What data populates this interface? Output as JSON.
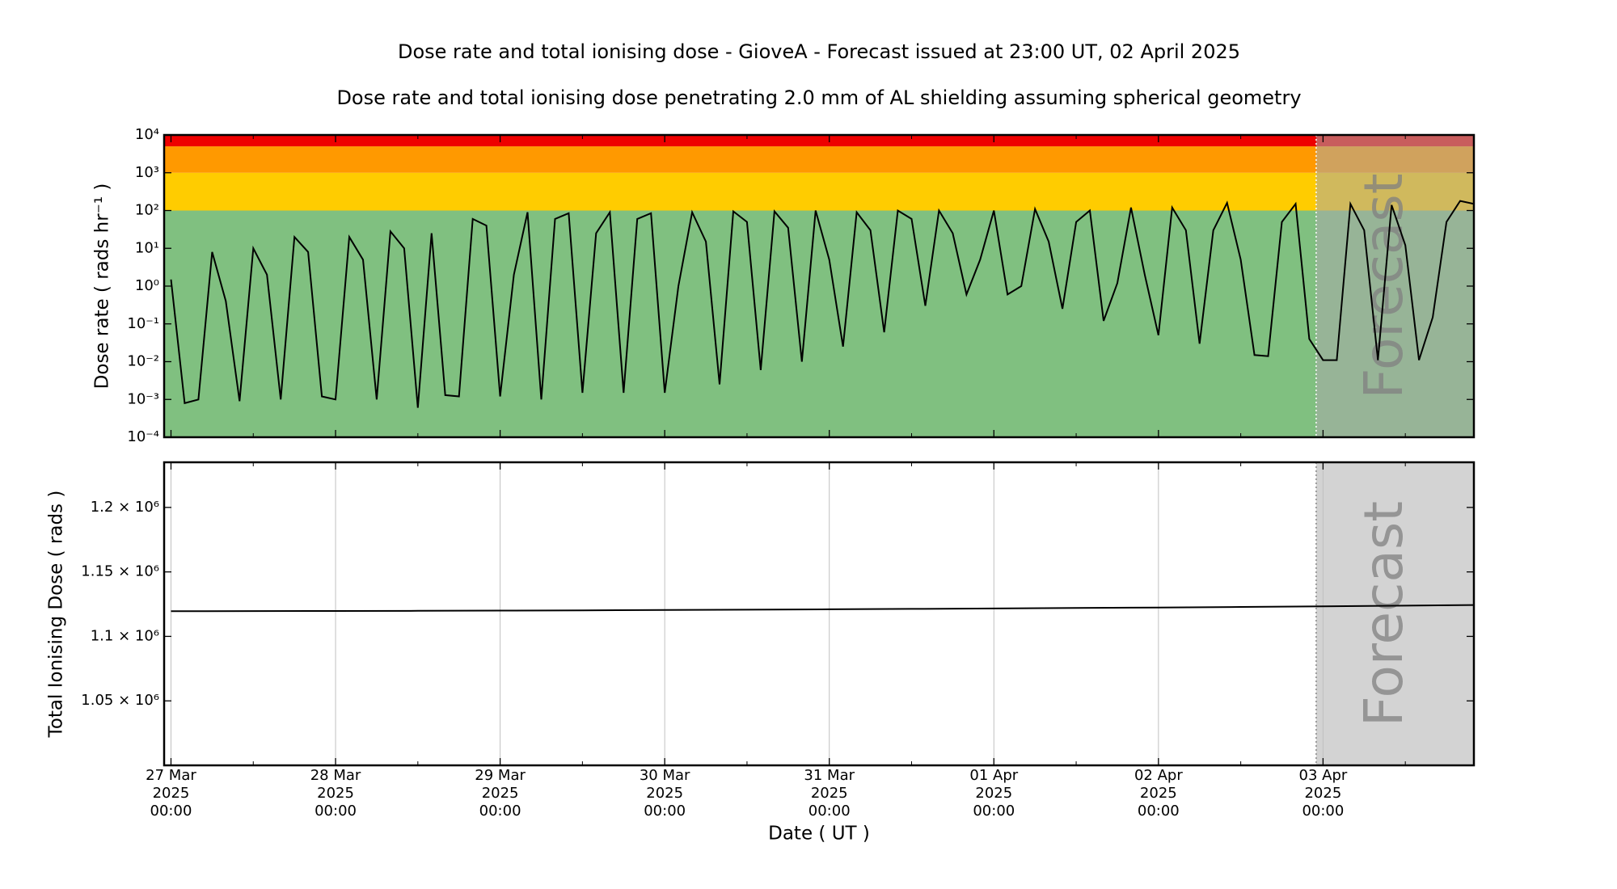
{
  "chart_data": [
    {
      "type": "line",
      "title": "Dose rate and total ionising dose - GioveA - Forecast issued at 23:00 UT, 02 April 2025",
      "subtitle": "Dose rate and total ionising dose penetrating 2.0 mm of AL shielding assuming spherical geometry",
      "ylabel": "Dose rate ( rads hr⁻¹ )",
      "log_y": true,
      "color": "#000000",
      "x": [
        "2025-03-27 00:00",
        "2025-03-27 02:00",
        "2025-03-27 04:00",
        "2025-03-27 06:00",
        "2025-03-27 08:00",
        "2025-03-27 10:00",
        "2025-03-27 12:00",
        "2025-03-27 14:00",
        "2025-03-27 16:00",
        "2025-03-27 18:00",
        "2025-03-27 20:00",
        "2025-03-27 22:00",
        "2025-03-28 00:00",
        "2025-03-28 02:00",
        "2025-03-28 04:00",
        "2025-03-28 06:00",
        "2025-03-28 08:00",
        "2025-03-28 10:00",
        "2025-03-28 12:00",
        "2025-03-28 14:00",
        "2025-03-28 16:00",
        "2025-03-28 18:00",
        "2025-03-28 20:00",
        "2025-03-28 22:00",
        "2025-03-29 00:00",
        "2025-03-29 02:00",
        "2025-03-29 04:00",
        "2025-03-29 06:00",
        "2025-03-29 08:00",
        "2025-03-29 10:00",
        "2025-03-29 12:00",
        "2025-03-29 14:00",
        "2025-03-29 16:00",
        "2025-03-29 18:00",
        "2025-03-29 20:00",
        "2025-03-29 22:00",
        "2025-03-30 00:00",
        "2025-03-30 02:00",
        "2025-03-30 04:00",
        "2025-03-30 06:00",
        "2025-03-30 08:00",
        "2025-03-30 10:00",
        "2025-03-30 12:00",
        "2025-03-30 14:00",
        "2025-03-30 16:00",
        "2025-03-30 18:00",
        "2025-03-30 20:00",
        "2025-03-30 22:00",
        "2025-03-31 00:00",
        "2025-03-31 02:00",
        "2025-03-31 04:00",
        "2025-03-31 06:00",
        "2025-03-31 08:00",
        "2025-03-31 10:00",
        "2025-03-31 12:00",
        "2025-03-31 14:00",
        "2025-03-31 16:00",
        "2025-03-31 18:00",
        "2025-03-31 20:00",
        "2025-03-31 22:00",
        "2025-04-01 00:00",
        "2025-04-01 02:00",
        "2025-04-01 04:00",
        "2025-04-01 06:00",
        "2025-04-01 08:00",
        "2025-04-01 10:00",
        "2025-04-01 12:00",
        "2025-04-01 14:00",
        "2025-04-01 16:00",
        "2025-04-01 18:00",
        "2025-04-01 20:00",
        "2025-04-01 22:00",
        "2025-04-02 00:00",
        "2025-04-02 02:00",
        "2025-04-02 04:00",
        "2025-04-02 06:00",
        "2025-04-02 08:00",
        "2025-04-02 10:00",
        "2025-04-02 12:00",
        "2025-04-02 14:00",
        "2025-04-02 16:00",
        "2025-04-02 18:00",
        "2025-04-02 20:00",
        "2025-04-02 22:00",
        "2025-04-03 00:00",
        "2025-04-03 02:00",
        "2025-04-03 04:00",
        "2025-04-03 06:00",
        "2025-04-03 08:00",
        "2025-04-03 10:00",
        "2025-04-03 12:00",
        "2025-04-03 14:00",
        "2025-04-03 16:00",
        "2025-04-03 18:00",
        "2025-04-03 20:00",
        "2025-04-03 22:00"
      ],
      "values": [
        1.5,
        0.0008,
        0.001,
        8,
        0.4,
        0.0009,
        10,
        2,
        0.001,
        20,
        8,
        0.0012,
        0.001,
        20,
        5,
        0.001,
        28,
        10,
        0.0006,
        25,
        0.0013,
        0.0012,
        60,
        40,
        0.0012,
        2,
        90,
        0.001,
        60,
        85,
        0.0015,
        25,
        90,
        0.0015,
        60,
        85,
        0.0015,
        1,
        90,
        15,
        0.0025,
        95,
        50,
        0.006,
        95,
        35,
        0.01,
        100,
        5,
        0.025,
        90,
        30,
        0.06,
        100,
        60,
        0.3,
        100,
        25,
        0.6,
        5,
        100,
        0.6,
        1,
        110,
        15,
        0.25,
        50,
        100,
        0.12,
        1.2,
        120,
        2,
        0.05,
        120,
        30,
        0.03,
        30,
        160,
        5,
        0.015,
        0.014,
        50,
        150,
        0.04,
        0.011,
        0.011,
        150,
        30,
        0.011,
        140,
        12,
        0.011,
        0.15,
        50,
        180,
        150
      ],
      "xlim": [
        "2025-03-26 23:00",
        "2025-04-03 22:00"
      ],
      "ylim": [
        0.0001,
        10000
      ],
      "yticks": [
        {
          "value": 0.0001,
          "label": "10⁻⁴"
        },
        {
          "value": 0.001,
          "label": "10⁻³"
        },
        {
          "value": 0.01,
          "label": "10⁻²"
        },
        {
          "value": 0.1,
          "label": "10⁻¹"
        },
        {
          "value": 1,
          "label": "10⁰"
        },
        {
          "value": 10,
          "label": "10¹"
        },
        {
          "value": 100,
          "label": "10²"
        },
        {
          "value": 1000,
          "label": "10³"
        },
        {
          "value": 10000,
          "label": "10⁴"
        }
      ],
      "bands": [
        {
          "from": 0.0001,
          "to": 100,
          "color": "#80c080"
        },
        {
          "from": 100,
          "to": 1000,
          "color": "#ffcc00"
        },
        {
          "from": 1000,
          "to": 5000,
          "color": "#ff9900"
        },
        {
          "from": 5000,
          "to": 10000,
          "color": "#ee0000"
        }
      ],
      "forecast_start": "2025-04-02 23:00",
      "forecast_label": "Forecast",
      "xticks": [
        "2025-03-27 00:00",
        "2025-03-28 00:00",
        "2025-03-29 00:00",
        "2025-03-30 00:00",
        "2025-03-31 00:00",
        "2025-04-01 00:00",
        "2025-04-02 00:00",
        "2025-04-03 00:00"
      ],
      "xminorticks": [
        "2025-03-27 12:00",
        "2025-03-28 12:00",
        "2025-03-29 12:00",
        "2025-03-30 12:00",
        "2025-03-31 12:00",
        "2025-04-01 12:00",
        "2025-04-02 12:00",
        "2025-04-03 12:00"
      ],
      "grid": false
    },
    {
      "type": "line",
      "ylabel": "Total Ionising Dose ( rads )",
      "xlabel": "Date ( UT )",
      "log_y": false,
      "color": "#000000",
      "x": [
        "2025-03-27 00:00",
        "2025-03-27 12:00",
        "2025-03-28 00:00",
        "2025-03-28 12:00",
        "2025-03-29 00:00",
        "2025-03-29 12:00",
        "2025-03-30 00:00",
        "2025-03-30 12:00",
        "2025-03-31 00:00",
        "2025-03-31 12:00",
        "2025-04-01 00:00",
        "2025-04-01 12:00",
        "2025-04-02 00:00",
        "2025-04-02 12:00",
        "2025-04-03 00:00",
        "2025-04-03 12:00",
        "2025-04-03 22:00"
      ],
      "values": [
        1119500,
        1119600,
        1119700,
        1119850,
        1120000,
        1120200,
        1120450,
        1120700,
        1121000,
        1121300,
        1121650,
        1122000,
        1122400,
        1122800,
        1123300,
        1123800,
        1124300
      ],
      "xlim": [
        "2025-03-26 23:00",
        "2025-04-03 22:00"
      ],
      "ylim": [
        1000000,
        1235000
      ],
      "yticks": [
        {
          "value": 1050000,
          "label": "1.05 × 10⁶"
        },
        {
          "value": 1100000,
          "label": "1.1 × 10⁶"
        },
        {
          "value": 1150000,
          "label": "1.15 × 10⁶"
        },
        {
          "value": 1200000,
          "label": "1.2 × 10⁶"
        }
      ],
      "forecast_start": "2025-04-02 23:00",
      "forecast_label": "Forecast",
      "xticks": [
        {
          "value": "2025-03-27 00:00",
          "label": [
            "27 Mar",
            "2025",
            "00:00"
          ]
        },
        {
          "value": "2025-03-28 00:00",
          "label": [
            "28 Mar",
            "2025",
            "00:00"
          ]
        },
        {
          "value": "2025-03-29 00:00",
          "label": [
            "29 Mar",
            "2025",
            "00:00"
          ]
        },
        {
          "value": "2025-03-30 00:00",
          "label": [
            "30 Mar",
            "2025",
            "00:00"
          ]
        },
        {
          "value": "2025-03-31 00:00",
          "label": [
            "31 Mar",
            "2025",
            "00:00"
          ]
        },
        {
          "value": "2025-04-01 00:00",
          "label": [
            "01 Apr",
            "2025",
            "00:00"
          ]
        },
        {
          "value": "2025-04-02 00:00",
          "label": [
            "02 Apr",
            "2025",
            "00:00"
          ]
        },
        {
          "value": "2025-04-03 00:00",
          "label": [
            "03 Apr",
            "2025",
            "00:00"
          ]
        }
      ],
      "xminorticks": [
        "2025-03-27 12:00",
        "2025-03-28 12:00",
        "2025-03-29 12:00",
        "2025-03-30 12:00",
        "2025-03-31 12:00",
        "2025-04-01 12:00",
        "2025-04-02 12:00",
        "2025-04-03 12:00"
      ],
      "grid": true
    }
  ]
}
